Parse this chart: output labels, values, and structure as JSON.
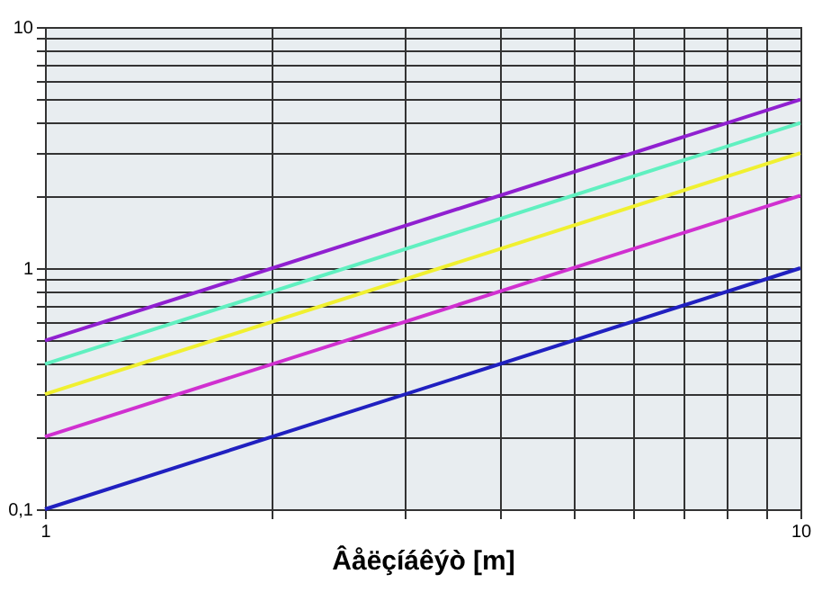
{
  "chart_data": {
    "type": "line",
    "xlabel": "Âåëçíáêýò [m]",
    "x": [
      1,
      10
    ],
    "series": [
      {
        "color": "#2020c0",
        "values": [
          0.1,
          1
        ]
      },
      {
        "color": "#d030d0",
        "values": [
          0.2,
          2
        ]
      },
      {
        "color": "#f0f030",
        "values": [
          0.3,
          3
        ]
      },
      {
        "color": "#60f0c0",
        "values": [
          0.4,
          4
        ]
      },
      {
        "color": "#9020d0",
        "values": [
          0.5,
          5
        ]
      }
    ],
    "log": "xy",
    "grid": true,
    "legend": false,
    "marker": "none",
    "line_style": "solid",
    "xlim": [
      1,
      10
    ],
    "ylim": [
      0.1,
      10
    ],
    "xticks": [
      1,
      {
        "value": 2,
        "label": null
      },
      {
        "value": 3,
        "label": null
      },
      {
        "value": 4,
        "label": null
      },
      {
        "value": 5,
        "label": null
      },
      {
        "value": 6,
        "label": null
      },
      {
        "value": 7,
        "label": null
      },
      {
        "value": 8,
        "label": null
      },
      {
        "value": 9,
        "label": null
      },
      10
    ],
    "yticks": [
      {
        "value": 0.1,
        "label": "0,1"
      },
      {
        "value": 0.2,
        "label": null
      },
      {
        "value": 0.3,
        "label": null
      },
      {
        "value": 0.4,
        "label": null
      },
      {
        "value": 0.5,
        "label": null
      },
      {
        "value": 0.6,
        "label": null
      },
      {
        "value": 0.7,
        "label": null
      },
      {
        "value": 0.8,
        "label": null
      },
      {
        "value": 0.9,
        "label": null
      },
      1,
      {
        "value": 2,
        "label": null
      },
      {
        "value": 3,
        "label": null
      },
      {
        "value": 4,
        "label": null
      },
      {
        "value": 5,
        "label": null
      },
      {
        "value": 6,
        "label": null
      },
      {
        "value": 7,
        "label": null
      },
      {
        "value": 8,
        "label": null
      },
      {
        "value": 9,
        "label": null
      },
      10
    ]
  }
}
